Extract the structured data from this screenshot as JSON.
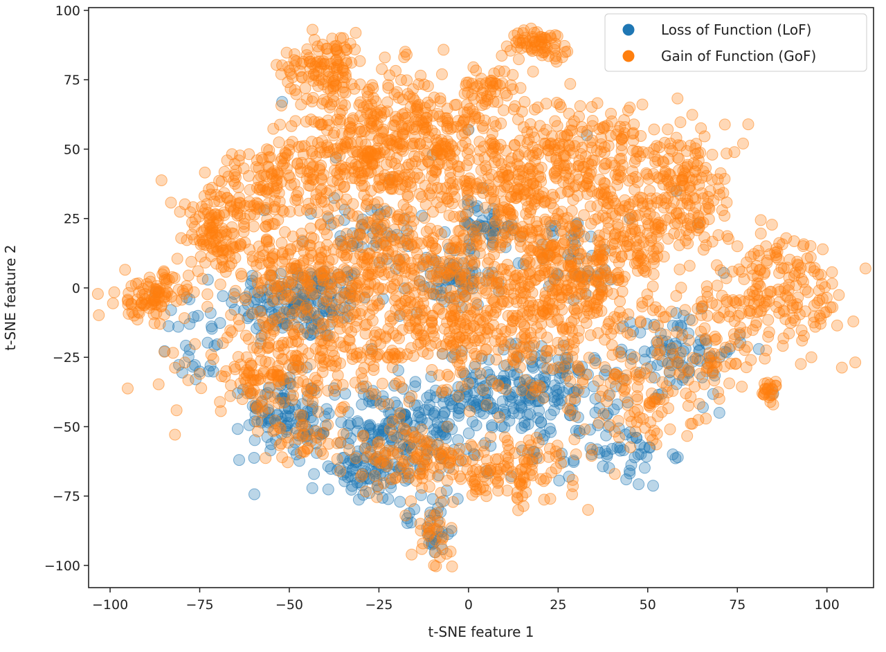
{
  "chart_data": {
    "type": "scatter",
    "title": "",
    "xlabel": "t-SNE feature 1",
    "ylabel": "t-SNE feature 2",
    "xlim": [
      -106,
      113
    ],
    "ylim": [
      -108,
      101
    ],
    "xticks": [
      -100,
      -75,
      -50,
      -25,
      0,
      25,
      50,
      75,
      100
    ],
    "yticks": [
      -100,
      -75,
      -50,
      -25,
      0,
      25,
      50,
      75,
      100
    ],
    "xtick_labels": [
      "−100",
      "−75",
      "−50",
      "−25",
      "0",
      "25",
      "50",
      "75",
      "100"
    ],
    "ytick_labels": [
      "−100",
      "−75",
      "−50",
      "−25",
      "0",
      "25",
      "50",
      "75",
      "100"
    ],
    "grid": false,
    "legend_position": "top-right",
    "point_alpha": 0.3,
    "series": [
      {
        "name": "Loss of Function (LoF)",
        "color": "#1f77b4",
        "clusters": [
          {
            "center": [
              -47,
              -5
            ],
            "spread": [
              10,
              7
            ],
            "count": 170
          },
          {
            "center": [
              -52,
              -45
            ],
            "spread": [
              5,
              7
            ],
            "count": 90
          },
          {
            "center": [
              -18,
              -50
            ],
            "spread": [
              13,
              8
            ],
            "count": 200
          },
          {
            "center": [
              18,
              -37
            ],
            "spread": [
              12,
              8
            ],
            "count": 200
          },
          {
            "center": [
              -28,
              -68
            ],
            "spread": [
              8,
              5
            ],
            "count": 70
          },
          {
            "center": [
              5,
              22
            ],
            "spread": [
              5,
              4
            ],
            "count": 50
          },
          {
            "center": [
              -5,
              2
            ],
            "spread": [
              6,
              5
            ],
            "count": 60
          },
          {
            "center": [
              58,
              -22
            ],
            "spread": [
              8,
              8
            ],
            "count": 80
          },
          {
            "center": [
              -10,
              -85
            ],
            "spread": [
              4,
              6
            ],
            "count": 30
          },
          {
            "center": [
              40,
              -60
            ],
            "spread": [
              8,
              6
            ],
            "count": 50
          },
          {
            "center": [
              -28,
              20
            ],
            "spread": [
              8,
              6
            ],
            "count": 40
          },
          {
            "center": [
              -75,
              -20
            ],
            "spread": [
              6,
              8
            ],
            "count": 25
          },
          {
            "center": [
              30,
              10
            ],
            "spread": [
              6,
              8
            ],
            "count": 40
          }
        ],
        "samples": [
          [
            -81,
            -14
          ],
          [
            -83,
            -8
          ],
          [
            -57,
            28
          ],
          [
            -37,
            47
          ],
          [
            -52,
            67
          ],
          [
            0,
            57
          ],
          [
            4,
            36
          ],
          [
            -22,
            39
          ],
          [
            -13,
            26
          ],
          [
            85,
            -38
          ],
          [
            81,
            -22
          ],
          [
            64,
            23
          ],
          [
            -64,
            -62
          ],
          [
            -72,
            -28
          ],
          [
            -48,
            -60
          ],
          [
            -33,
            -62
          ],
          [
            -3,
            -76
          ],
          [
            5,
            -66
          ],
          [
            28,
            -68
          ],
          [
            44,
            -69
          ],
          [
            57,
            -60
          ],
          [
            70,
            -45
          ],
          [
            70,
            -25
          ],
          [
            33,
            55
          ],
          [
            58,
            35
          ],
          [
            60,
            -10
          ],
          [
            45,
            25
          ],
          [
            -10,
            48
          ],
          [
            -27,
            -22
          ],
          [
            -58,
            -20
          ]
        ]
      },
      {
        "name": "Gain of Function (GoF)",
        "color": "#ff7f0e",
        "clusters": [
          {
            "center": [
              -40,
              80
            ],
            "spread": [
              6,
              6
            ],
            "count": 110
          },
          {
            "center": [
              -20,
              60
            ],
            "spread": [
              12,
              10
            ],
            "count": 200
          },
          {
            "center": [
              -35,
              45
            ],
            "spread": [
              12,
              10
            ],
            "count": 200
          },
          {
            "center": [
              0,
              45
            ],
            "spread": [
              15,
              12
            ],
            "count": 260
          },
          {
            "center": [
              35,
              45
            ],
            "spread": [
              15,
              12
            ],
            "count": 260
          },
          {
            "center": [
              20,
              88
            ],
            "spread": [
              4,
              2.5
            ],
            "count": 60
          },
          {
            "center": [
              6,
              72
            ],
            "spread": [
              4,
              4
            ],
            "count": 40
          },
          {
            "center": [
              -60,
              35
            ],
            "spread": [
              8,
              8
            ],
            "count": 110
          },
          {
            "center": [
              -70,
              18
            ],
            "spread": [
              6,
              8
            ],
            "count": 100
          },
          {
            "center": [
              -88,
              -3
            ],
            "spread": [
              5,
              4
            ],
            "count": 90
          },
          {
            "center": [
              -25,
              10
            ],
            "spread": [
              20,
              10
            ],
            "count": 300
          },
          {
            "center": [
              20,
              12
            ],
            "spread": [
              18,
              12
            ],
            "count": 280
          },
          {
            "center": [
              -45,
              -25
            ],
            "spread": [
              15,
              12
            ],
            "count": 260
          },
          {
            "center": [
              0,
              -15
            ],
            "spread": [
              15,
              12
            ],
            "count": 280
          },
          {
            "center": [
              30,
              -5
            ],
            "spread": [
              12,
              10
            ],
            "count": 180
          },
          {
            "center": [
              52,
              20
            ],
            "spread": [
              10,
              8
            ],
            "count": 120
          },
          {
            "center": [
              62,
              38
            ],
            "spread": [
              5,
              8
            ],
            "count": 80
          },
          {
            "center": [
              -15,
              -62
            ],
            "spread": [
              8,
              6
            ],
            "count": 100
          },
          {
            "center": [
              10,
              -65
            ],
            "spread": [
              10,
              6
            ],
            "count": 120
          },
          {
            "center": [
              -10,
              -90
            ],
            "spread": [
              3,
              5
            ],
            "count": 30
          },
          {
            "center": [
              85,
              -5
            ],
            "spread": [
              12,
              8
            ],
            "count": 150
          },
          {
            "center": [
              88,
              10
            ],
            "spread": [
              6,
              5
            ],
            "count": 40
          },
          {
            "center": [
              84,
              -37
            ],
            "spread": [
              1.5,
              1.5
            ],
            "count": 20
          },
          {
            "center": [
              45,
              -40
            ],
            "spread": [
              10,
              10
            ],
            "count": 110
          },
          {
            "center": [
              -50,
              5
            ],
            "spread": [
              8,
              8
            ],
            "count": 80
          },
          {
            "center": [
              65,
              -25
            ],
            "spread": [
              6,
              6
            ],
            "count": 50
          },
          {
            "center": [
              -60,
              -35
            ],
            "spread": [
              5,
              5
            ],
            "count": 40
          },
          {
            "center": [
              -45,
              -55
            ],
            "spread": [
              5,
              5
            ],
            "count": 30
          }
        ],
        "samples": [
          [
            -52,
            -61
          ],
          [
            -68,
            -32
          ],
          [
            -75,
            -31
          ],
          [
            -85,
            6
          ],
          [
            -95,
            -6
          ],
          [
            -45,
            86
          ],
          [
            -35,
            90
          ],
          [
            27,
            85
          ],
          [
            23,
            90
          ],
          [
            17,
            89
          ],
          [
            10,
            78
          ],
          [
            75,
            15
          ],
          [
            83,
            15
          ],
          [
            98,
            -10
          ],
          [
            101,
            -7
          ],
          [
            85,
            -42
          ],
          [
            82,
            -38
          ],
          [
            70,
            -40
          ],
          [
            65,
            -5
          ],
          [
            68,
            48
          ],
          [
            45,
            65
          ],
          [
            40,
            60
          ],
          [
            -8,
            -97
          ],
          [
            -5,
            -95
          ],
          [
            -13,
            -72
          ],
          [
            5,
            -75
          ],
          [
            15,
            -75
          ],
          [
            30,
            -60
          ],
          [
            -30,
            -68
          ],
          [
            -45,
            -58
          ]
        ]
      }
    ]
  }
}
